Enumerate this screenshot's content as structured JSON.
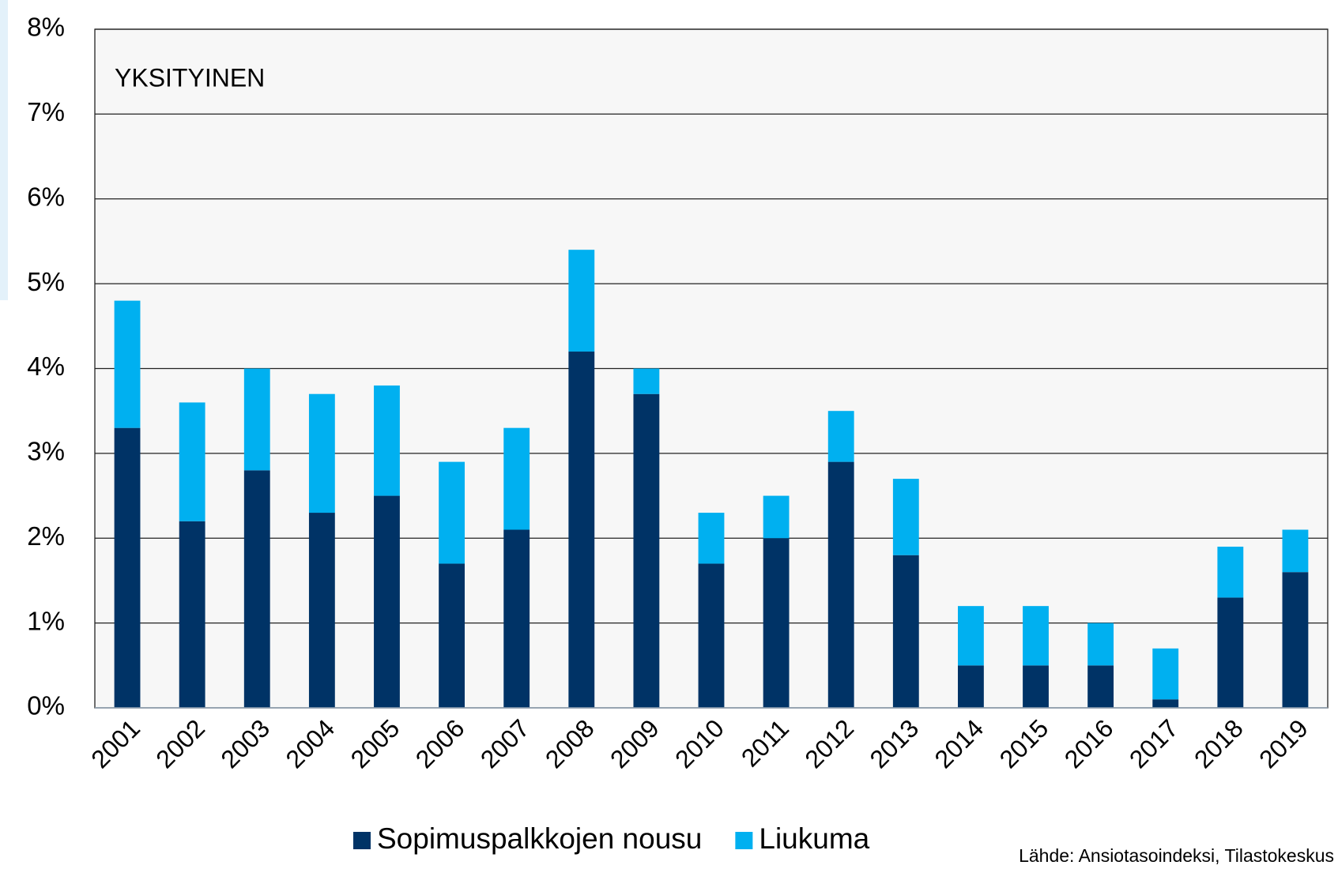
{
  "chart_data": {
    "type": "stacked_bar",
    "annotation": "YKSITYINEN",
    "source": "Lähde: Ansiotasoindeksi, Tilastokeskus",
    "categories": [
      "2001",
      "2002",
      "2003",
      "2004",
      "2005",
      "2006",
      "2007",
      "2008",
      "2009",
      "2010",
      "2011",
      "2012",
      "2013",
      "2014",
      "2015",
      "2016",
      "2017",
      "2018",
      "2019"
    ],
    "series": [
      {
        "name": "Sopimuspalkkojen nousu",
        "color": "#003366",
        "values": [
          3.3,
          2.2,
          2.8,
          2.3,
          2.5,
          1.7,
          2.1,
          4.2,
          3.7,
          1.7,
          2.0,
          2.9,
          1.8,
          0.5,
          0.5,
          0.5,
          0.1,
          1.3,
          1.6
        ]
      },
      {
        "name": "Liukuma",
        "color": "#00b0f0",
        "values": [
          1.5,
          1.4,
          1.2,
          1.4,
          1.3,
          1.2,
          1.2,
          1.2,
          0.3,
          0.6,
          0.5,
          0.6,
          0.9,
          0.7,
          0.7,
          0.5,
          0.6,
          0.6,
          0.5
        ]
      }
    ],
    "ylim": [
      0,
      8
    ],
    "yticks": [
      {
        "value": 0,
        "label": "0%"
      },
      {
        "value": 1,
        "label": "1%"
      },
      {
        "value": 2,
        "label": "2%"
      },
      {
        "value": 3,
        "label": "3%"
      },
      {
        "value": 4,
        "label": "4%"
      },
      {
        "value": 5,
        "label": "5%"
      },
      {
        "value": 6,
        "label": "6%"
      },
      {
        "value": 7,
        "label": "7%"
      },
      {
        "value": 8,
        "label": "8%"
      }
    ],
    "grid": true,
    "legend": "bottom"
  }
}
